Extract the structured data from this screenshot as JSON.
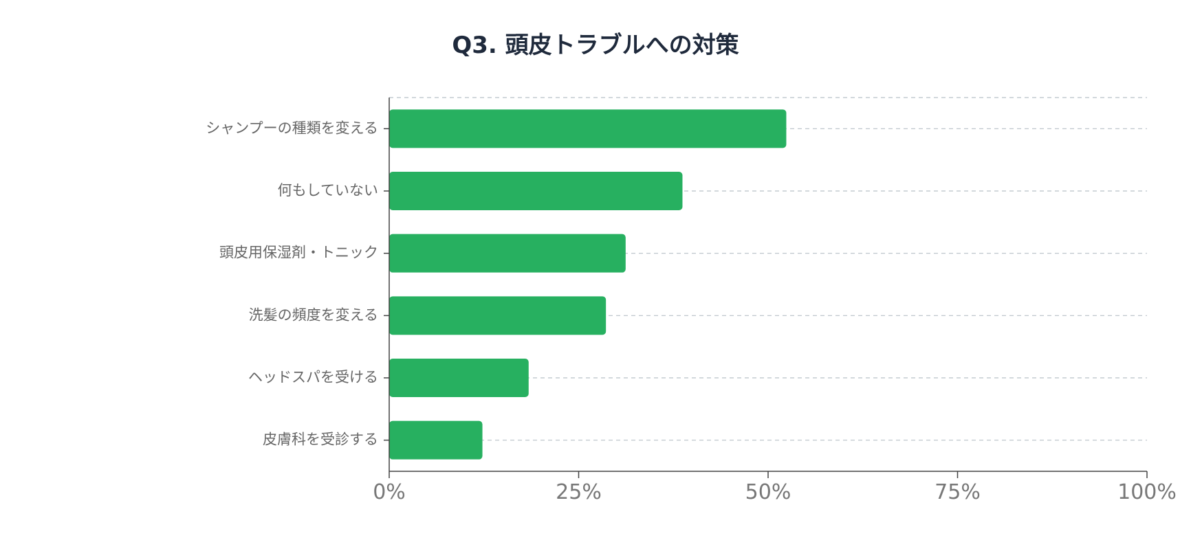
{
  "chart_data": {
    "type": "bar",
    "orientation": "horizontal",
    "title": "Q3. 頭皮トラブルへの対策",
    "xlabel": "",
    "ylabel": "",
    "categories": [
      "シャンプーの種類を変える",
      "何もしていない",
      "頭皮用保湿剤・トニック",
      "洗髪の頻度を変える",
      "ヘッドスパを受ける",
      "皮膚科を受診する"
    ],
    "values": [
      52.4,
      38.7,
      31.2,
      28.6,
      18.4,
      12.3
    ],
    "xlim": [
      0,
      100
    ],
    "x_ticks": [
      0,
      25,
      50,
      75,
      100
    ],
    "x_tick_labels": [
      "0%",
      "25%",
      "50%",
      "75%",
      "100%"
    ],
    "grid": "horizontal dashed",
    "legend": "none",
    "bar_color": "#27b060"
  }
}
